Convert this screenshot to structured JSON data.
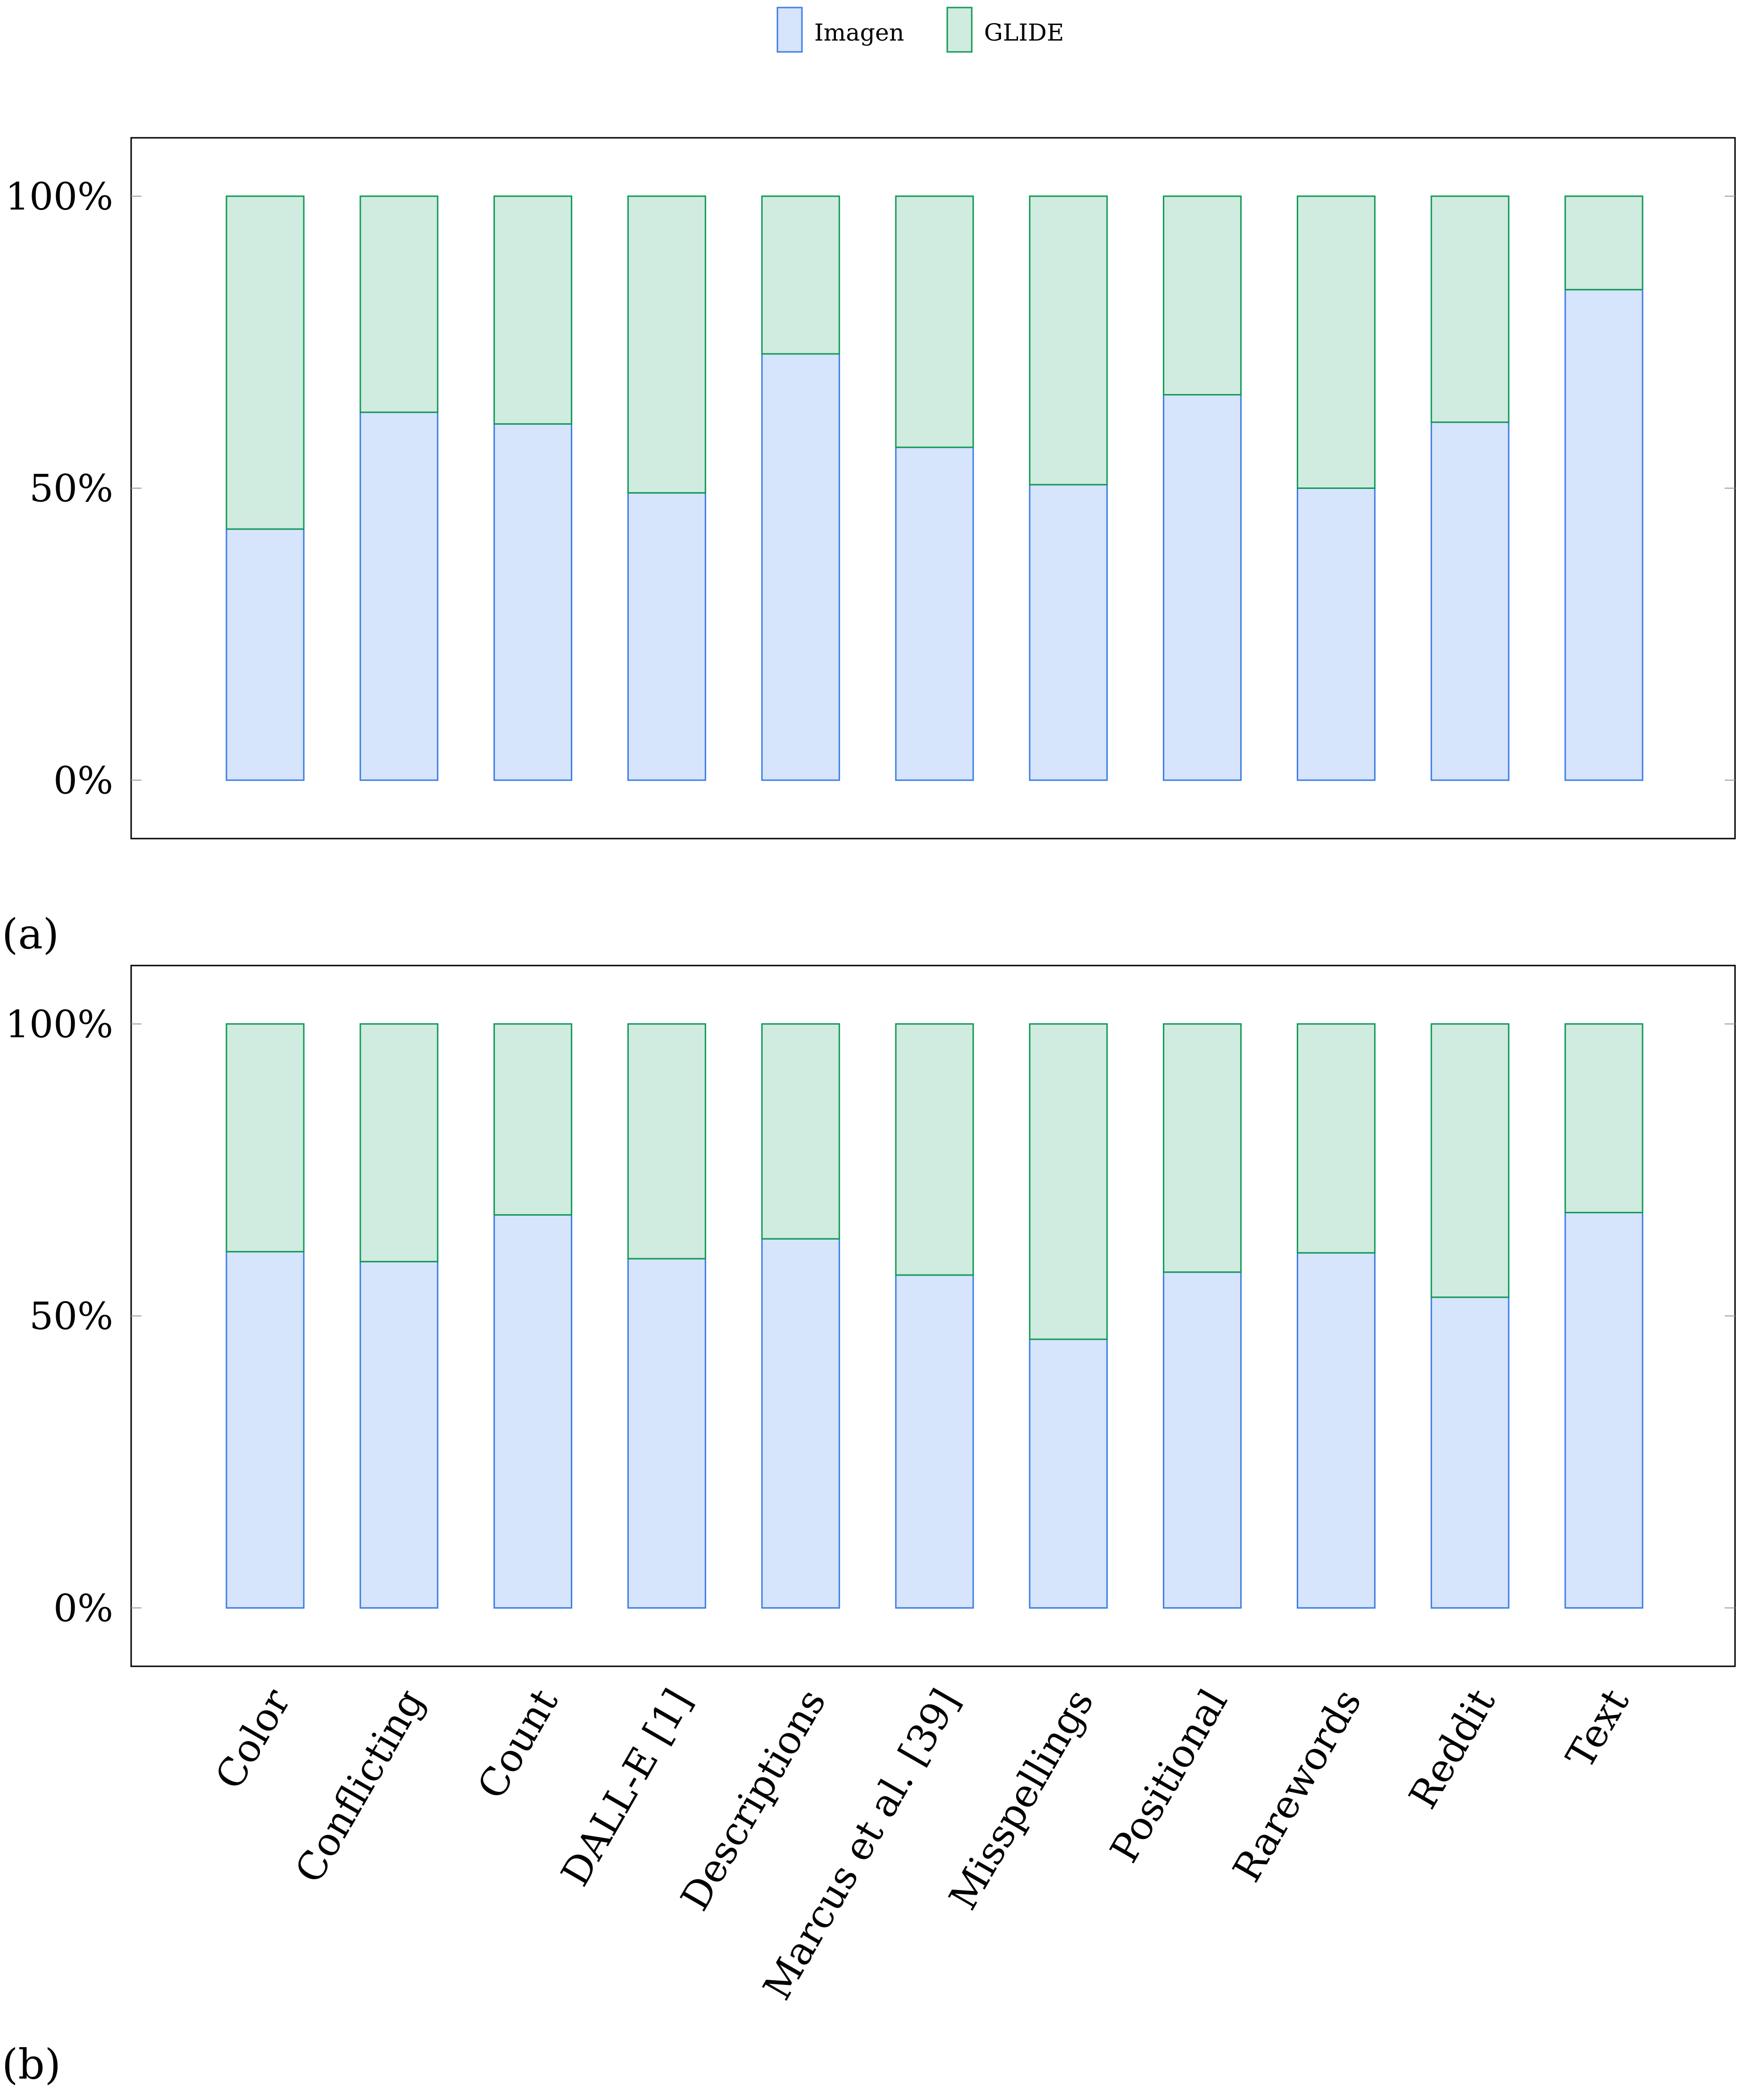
{
  "legend": {
    "position": "top-center",
    "items": [
      {
        "label": "Imagen",
        "fill": "#d6e4fc",
        "stroke": "#3c7ee2"
      },
      {
        "label": "GLIDE",
        "fill": "#d0ebdf",
        "stroke": "#119956"
      }
    ]
  },
  "axis_colors": {
    "frame": "#000000",
    "tick": "#9a9a9a"
  },
  "chart_data": [
    {
      "type": "bar",
      "stacked": true,
      "panel_label": "(a)",
      "categories": [
        "Color",
        "Conflicting",
        "Count",
        "DALL-E [1]",
        "Descriptions",
        "Marcus et al. [39]",
        "Misspellings",
        "Positional",
        "Rarewords",
        "Reddit",
        "Text"
      ],
      "series": [
        {
          "name": "Imagen",
          "values": [
            43,
            63,
            61,
            49.2,
            73,
            57,
            50.6,
            66,
            50,
            61.3,
            84
          ]
        },
        {
          "name": "GLIDE",
          "values": [
            57,
            37,
            39,
            50.8,
            27,
            43,
            49.4,
            34,
            50,
            38.7,
            16
          ]
        }
      ],
      "ylim": [
        -10,
        110
      ],
      "yticks": [
        0,
        50,
        100
      ],
      "ytick_labels": [
        "0%",
        "50%",
        "100%"
      ],
      "grid": false,
      "show_x_labels": false
    },
    {
      "type": "bar",
      "stacked": true,
      "panel_label": "(b)",
      "categories": [
        "Color",
        "Conflicting",
        "Count",
        "DALL-E [1]",
        "Descriptions",
        "Marcus et al. [39]",
        "Misspellings",
        "Positional",
        "Rarewords",
        "Reddit",
        "Text"
      ],
      "series": [
        {
          "name": "Imagen",
          "values": [
            61,
            59.3,
            67.3,
            59.8,
            63.2,
            57,
            46,
            57.5,
            60.8,
            53.2,
            67.7
          ]
        },
        {
          "name": "GLIDE",
          "values": [
            39,
            40.7,
            32.7,
            40.2,
            36.8,
            43,
            54,
            42.5,
            39.2,
            46.8,
            32.3
          ]
        }
      ],
      "ylim": [
        -10,
        110
      ],
      "yticks": [
        0,
        50,
        100
      ],
      "ytick_labels": [
        "0%",
        "50%",
        "100%"
      ],
      "grid": false,
      "show_x_labels": true
    }
  ]
}
